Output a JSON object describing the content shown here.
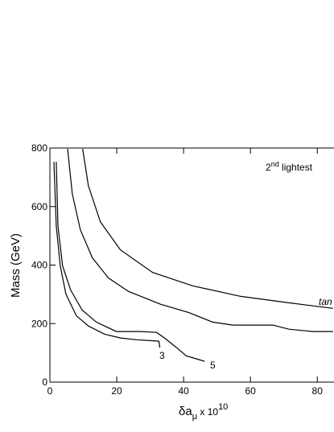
{
  "chart_data": {
    "type": "line",
    "annotation_top": {
      "base": "2",
      "sup": "nd",
      "rest": " lightest"
    },
    "ylabel": "Mass (GeV)",
    "xlabel": {
      "base": "δa",
      "sub": "μ",
      "mid": " x 10",
      "sup": "10"
    },
    "curve_labels": [
      "3",
      "5",
      "tan"
    ],
    "xlim": [
      0,
      85
    ],
    "ylim": [
      0,
      800
    ],
    "xticks": [
      0,
      20,
      40,
      60,
      80
    ],
    "yticks": [
      0,
      200,
      400,
      600,
      800
    ],
    "series": [
      {
        "color": "#000000",
        "x": [
          1.2,
          1.9,
          3.1,
          4.8,
          7.9,
          11.5,
          16.3,
          21.1,
          25.9,
          32.6,
          32.9
        ],
        "values": [
          753,
          534,
          397,
          301,
          227,
          192,
          164,
          151,
          145,
          140,
          118
        ]
      },
      {
        "color": "#000000",
        "x": [
          1.9,
          2.4,
          3.8,
          6.2,
          9.6,
          13.9,
          19.9,
          27.1,
          31.9,
          34.3,
          37.9,
          40.8,
          44.6,
          46.3
        ],
        "values": [
          753,
          534,
          397,
          315,
          247,
          205,
          173,
          173,
          170,
          151,
          118,
          90,
          77,
          71
        ]
      },
      {
        "color": "#000000",
        "x": [
          5.3,
          6.7,
          9.1,
          12.7,
          17.5,
          23.5,
          33.1,
          41.5,
          48.7,
          54.7,
          66.7,
          71.5,
          78.7,
          84.7
        ],
        "values": [
          797,
          644,
          521,
          425,
          356,
          310,
          266,
          238,
          205,
          195,
          195,
          181,
          173,
          173
        ]
      },
      {
        "color": "#000000",
        "x": [
          9.8,
          11.5,
          15.1,
          21.1,
          30.7,
          42.7,
          57.1,
          71.5,
          84.7
        ],
        "values": [
          797,
          671,
          548,
          452,
          375,
          329,
          293,
          271,
          252
        ]
      }
    ]
  }
}
